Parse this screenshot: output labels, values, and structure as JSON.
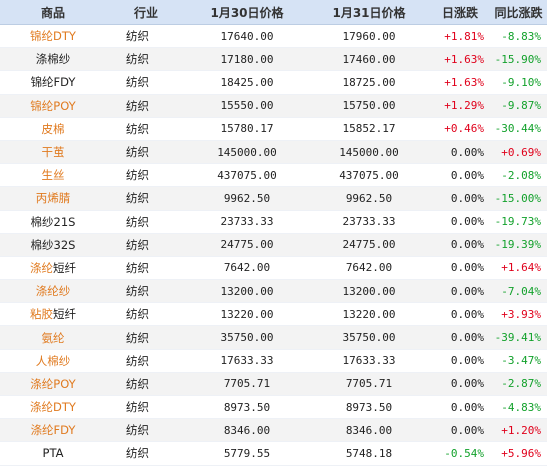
{
  "headers": [
    "商品",
    "行业",
    "1月30日价格",
    "1月31日价格",
    "日涨跌",
    "同比涨跌"
  ],
  "colors": {
    "link": "#e07a1f",
    "up": "#e0001b",
    "down": "#12a12b",
    "header_bg": "#d6e3f5"
  },
  "rows": [
    {
      "name_link": "锦纶DTY",
      "name_plain": "",
      "industry": "纺织",
      "price_prev": "17640.00",
      "price_curr": "17960.00",
      "day_change": "+1.81%",
      "day_dir": "up",
      "yoy_change": "-8.83%",
      "yoy_dir": "down"
    },
    {
      "name_link": "",
      "name_plain": "涤棉纱",
      "industry": "纺织",
      "price_prev": "17180.00",
      "price_curr": "17460.00",
      "day_change": "+1.63%",
      "day_dir": "up",
      "yoy_change": "-15.90%",
      "yoy_dir": "down"
    },
    {
      "name_link": "",
      "name_plain": "锦纶FDY",
      "industry": "纺织",
      "price_prev": "18425.00",
      "price_curr": "18725.00",
      "day_change": "+1.63%",
      "day_dir": "up",
      "yoy_change": "-9.10%",
      "yoy_dir": "down"
    },
    {
      "name_link": "锦纶POY",
      "name_plain": "",
      "industry": "纺织",
      "price_prev": "15550.00",
      "price_curr": "15750.00",
      "day_change": "+1.29%",
      "day_dir": "up",
      "yoy_change": "-9.87%",
      "yoy_dir": "down"
    },
    {
      "name_link": "皮棉",
      "name_plain": "",
      "industry": "纺织",
      "price_prev": "15780.17",
      "price_curr": "15852.17",
      "day_change": "+0.46%",
      "day_dir": "up",
      "yoy_change": "-30.44%",
      "yoy_dir": "down"
    },
    {
      "name_link": "干茧",
      "name_plain": "",
      "industry": "纺织",
      "price_prev": "145000.00",
      "price_curr": "145000.00",
      "day_change": "0.00%",
      "day_dir": "flat",
      "yoy_change": "+0.69%",
      "yoy_dir": "up"
    },
    {
      "name_link": "生丝",
      "name_plain": "",
      "industry": "纺织",
      "price_prev": "437075.00",
      "price_curr": "437075.00",
      "day_change": "0.00%",
      "day_dir": "flat",
      "yoy_change": "-2.08%",
      "yoy_dir": "down"
    },
    {
      "name_link": "丙烯腈",
      "name_plain": "",
      "industry": "纺织",
      "price_prev": "9962.50",
      "price_curr": "9962.50",
      "day_change": "0.00%",
      "day_dir": "flat",
      "yoy_change": "-15.00%",
      "yoy_dir": "down"
    },
    {
      "name_link": "",
      "name_plain": "棉纱21S",
      "industry": "纺织",
      "price_prev": "23733.33",
      "price_curr": "23733.33",
      "day_change": "0.00%",
      "day_dir": "flat",
      "yoy_change": "-19.73%",
      "yoy_dir": "down"
    },
    {
      "name_link": "",
      "name_plain": "棉纱32S",
      "industry": "纺织",
      "price_prev": "24775.00",
      "price_curr": "24775.00",
      "day_change": "0.00%",
      "day_dir": "flat",
      "yoy_change": "-19.39%",
      "yoy_dir": "down"
    },
    {
      "name_link": "涤纶",
      "name_plain": "短纤",
      "industry": "纺织",
      "price_prev": "7642.00",
      "price_curr": "7642.00",
      "day_change": "0.00%",
      "day_dir": "flat",
      "yoy_change": "+1.64%",
      "yoy_dir": "up"
    },
    {
      "name_link": "涤纶纱",
      "name_plain": "",
      "industry": "纺织",
      "price_prev": "13200.00",
      "price_curr": "13200.00",
      "day_change": "0.00%",
      "day_dir": "flat",
      "yoy_change": "-7.04%",
      "yoy_dir": "down"
    },
    {
      "name_link": "粘胶",
      "name_plain": "短纤",
      "industry": "纺织",
      "price_prev": "13220.00",
      "price_curr": "13220.00",
      "day_change": "0.00%",
      "day_dir": "flat",
      "yoy_change": "+3.93%",
      "yoy_dir": "up"
    },
    {
      "name_link": "氨纶",
      "name_plain": "",
      "industry": "纺织",
      "price_prev": "35750.00",
      "price_curr": "35750.00",
      "day_change": "0.00%",
      "day_dir": "flat",
      "yoy_change": "-39.41%",
      "yoy_dir": "down"
    },
    {
      "name_link": "人棉纱",
      "name_plain": "",
      "industry": "纺织",
      "price_prev": "17633.33",
      "price_curr": "17633.33",
      "day_change": "0.00%",
      "day_dir": "flat",
      "yoy_change": "-3.47%",
      "yoy_dir": "down"
    },
    {
      "name_link": "涤纶POY",
      "name_plain": "",
      "industry": "纺织",
      "price_prev": "7705.71",
      "price_curr": "7705.71",
      "day_change": "0.00%",
      "day_dir": "flat",
      "yoy_change": "-2.87%",
      "yoy_dir": "down"
    },
    {
      "name_link": "涤纶DTY",
      "name_plain": "",
      "industry": "纺织",
      "price_prev": "8973.50",
      "price_curr": "8973.50",
      "day_change": "0.00%",
      "day_dir": "flat",
      "yoy_change": "-4.83%",
      "yoy_dir": "down"
    },
    {
      "name_link": "涤纶FDY",
      "name_plain": "",
      "industry": "纺织",
      "price_prev": "8346.00",
      "price_curr": "8346.00",
      "day_change": "0.00%",
      "day_dir": "flat",
      "yoy_change": "+1.20%",
      "yoy_dir": "up"
    },
    {
      "name_link": "",
      "name_plain": "PTA",
      "industry": "纺织",
      "price_prev": "5779.55",
      "price_curr": "5748.18",
      "day_change": "-0.54%",
      "day_dir": "down",
      "yoy_change": "+5.96%",
      "yoy_dir": "up"
    }
  ]
}
